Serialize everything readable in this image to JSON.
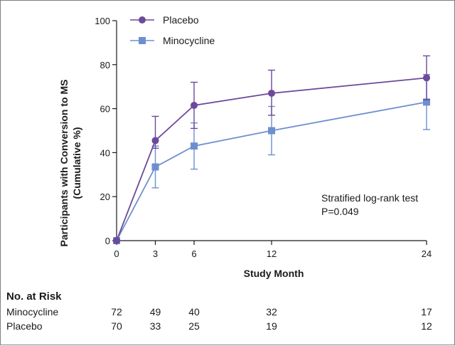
{
  "chart_data": {
    "type": "line",
    "xlabel": "Study Month",
    "ylabel_lines": [
      "Participants with Conversion to MS",
      "(Cumulative %)"
    ],
    "x": [
      0,
      3,
      6,
      12,
      24
    ],
    "xticks": [
      "0",
      "3",
      "6",
      "12",
      "24"
    ],
    "xlim": [
      0,
      24
    ],
    "ylim": [
      0,
      100
    ],
    "yticks": [
      "0",
      "20",
      "40",
      "60",
      "80",
      "100"
    ],
    "grid": false,
    "legend_position": "top-left",
    "series": [
      {
        "name": "Placebo",
        "color": "#6b4a9a",
        "marker": "circle",
        "values": [
          0,
          45.5,
          61.5,
          67,
          74
        ],
        "err_low": [
          0,
          42,
          51,
          57,
          64
        ],
        "err_high": [
          0,
          56.5,
          72,
          77.5,
          84
        ]
      },
      {
        "name": "Minocycline",
        "color": "#6e8fcf",
        "marker": "square",
        "values": [
          0,
          33.5,
          43,
          50,
          63
        ],
        "err_low": [
          0,
          24,
          32.5,
          39,
          50.5
        ],
        "err_high": [
          0,
          43,
          53.5,
          61,
          75.5
        ]
      }
    ],
    "annotation": [
      "Stratified log-rank test",
      "P=0.049"
    ],
    "risk_table": {
      "title": "No. at Risk",
      "rows": [
        {
          "label": "Minocycline",
          "values": [
            "72",
            "49",
            "40",
            "32",
            "17"
          ]
        },
        {
          "label": "Placebo",
          "values": [
            "70",
            "33",
            "25",
            "19",
            "12"
          ]
        }
      ]
    }
  }
}
